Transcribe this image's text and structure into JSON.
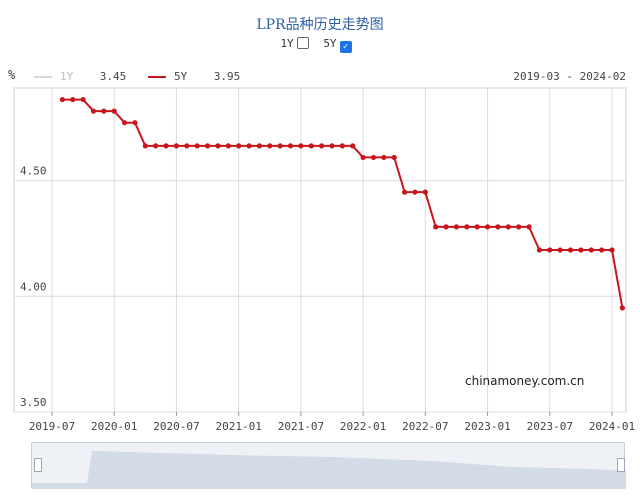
{
  "chart_data": {
    "type": "line",
    "title": "LPR品种历史走势图",
    "unit_label": "%",
    "toggles": [
      {
        "label": "1Y",
        "checked": false
      },
      {
        "label": "5Y",
        "checked": true
      }
    ],
    "legend": [
      {
        "name": "1Y",
        "value": "3.45",
        "color": "#cccccc"
      },
      {
        "name": "5Y",
        "value": "3.95",
        "color": "#c8161d"
      }
    ],
    "date_range": "2019-03 - 2024-02",
    "ylim": [
      3.5,
      4.9
    ],
    "y_ticks": [
      "4.50",
      "4.00",
      "3.50"
    ],
    "x_ticks": [
      "2019-07",
      "2020-01",
      "2020-07",
      "2021-01",
      "2021-07",
      "2022-01",
      "2022-07",
      "2023-01",
      "2023-07",
      "2024-01"
    ],
    "grid": true,
    "series": [
      {
        "name": "5Y",
        "color": "#c8161d",
        "x": [
          "2019-08",
          "2019-09",
          "2019-10",
          "2019-11",
          "2019-12",
          "2020-01",
          "2020-02",
          "2020-03",
          "2020-04",
          "2020-05",
          "2020-06",
          "2020-07",
          "2020-08",
          "2020-09",
          "2020-10",
          "2020-11",
          "2020-12",
          "2021-01",
          "2021-02",
          "2021-03",
          "2021-04",
          "2021-05",
          "2021-06",
          "2021-07",
          "2021-08",
          "2021-09",
          "2021-10",
          "2021-11",
          "2021-12",
          "2022-01",
          "2022-02",
          "2022-03",
          "2022-04",
          "2022-05",
          "2022-06",
          "2022-07",
          "2022-08",
          "2022-09",
          "2022-10",
          "2022-11",
          "2022-12",
          "2023-01",
          "2023-02",
          "2023-03",
          "2023-04",
          "2023-05",
          "2023-06",
          "2023-07",
          "2023-08",
          "2023-09",
          "2023-10",
          "2023-11",
          "2023-12",
          "2024-01",
          "2024-02"
        ],
        "values": [
          4.85,
          4.85,
          4.85,
          4.8,
          4.8,
          4.8,
          4.75,
          4.75,
          4.65,
          4.65,
          4.65,
          4.65,
          4.65,
          4.65,
          4.65,
          4.65,
          4.65,
          4.65,
          4.65,
          4.65,
          4.65,
          4.65,
          4.65,
          4.65,
          4.65,
          4.65,
          4.65,
          4.65,
          4.65,
          4.6,
          4.6,
          4.6,
          4.6,
          4.45,
          4.45,
          4.45,
          4.3,
          4.3,
          4.3,
          4.3,
          4.3,
          4.3,
          4.3,
          4.3,
          4.3,
          4.3,
          4.2,
          4.2,
          4.2,
          4.2,
          4.2,
          4.2,
          4.2,
          4.2,
          3.95
        ]
      }
    ],
    "watermark": "chinamoney.com.cn"
  }
}
